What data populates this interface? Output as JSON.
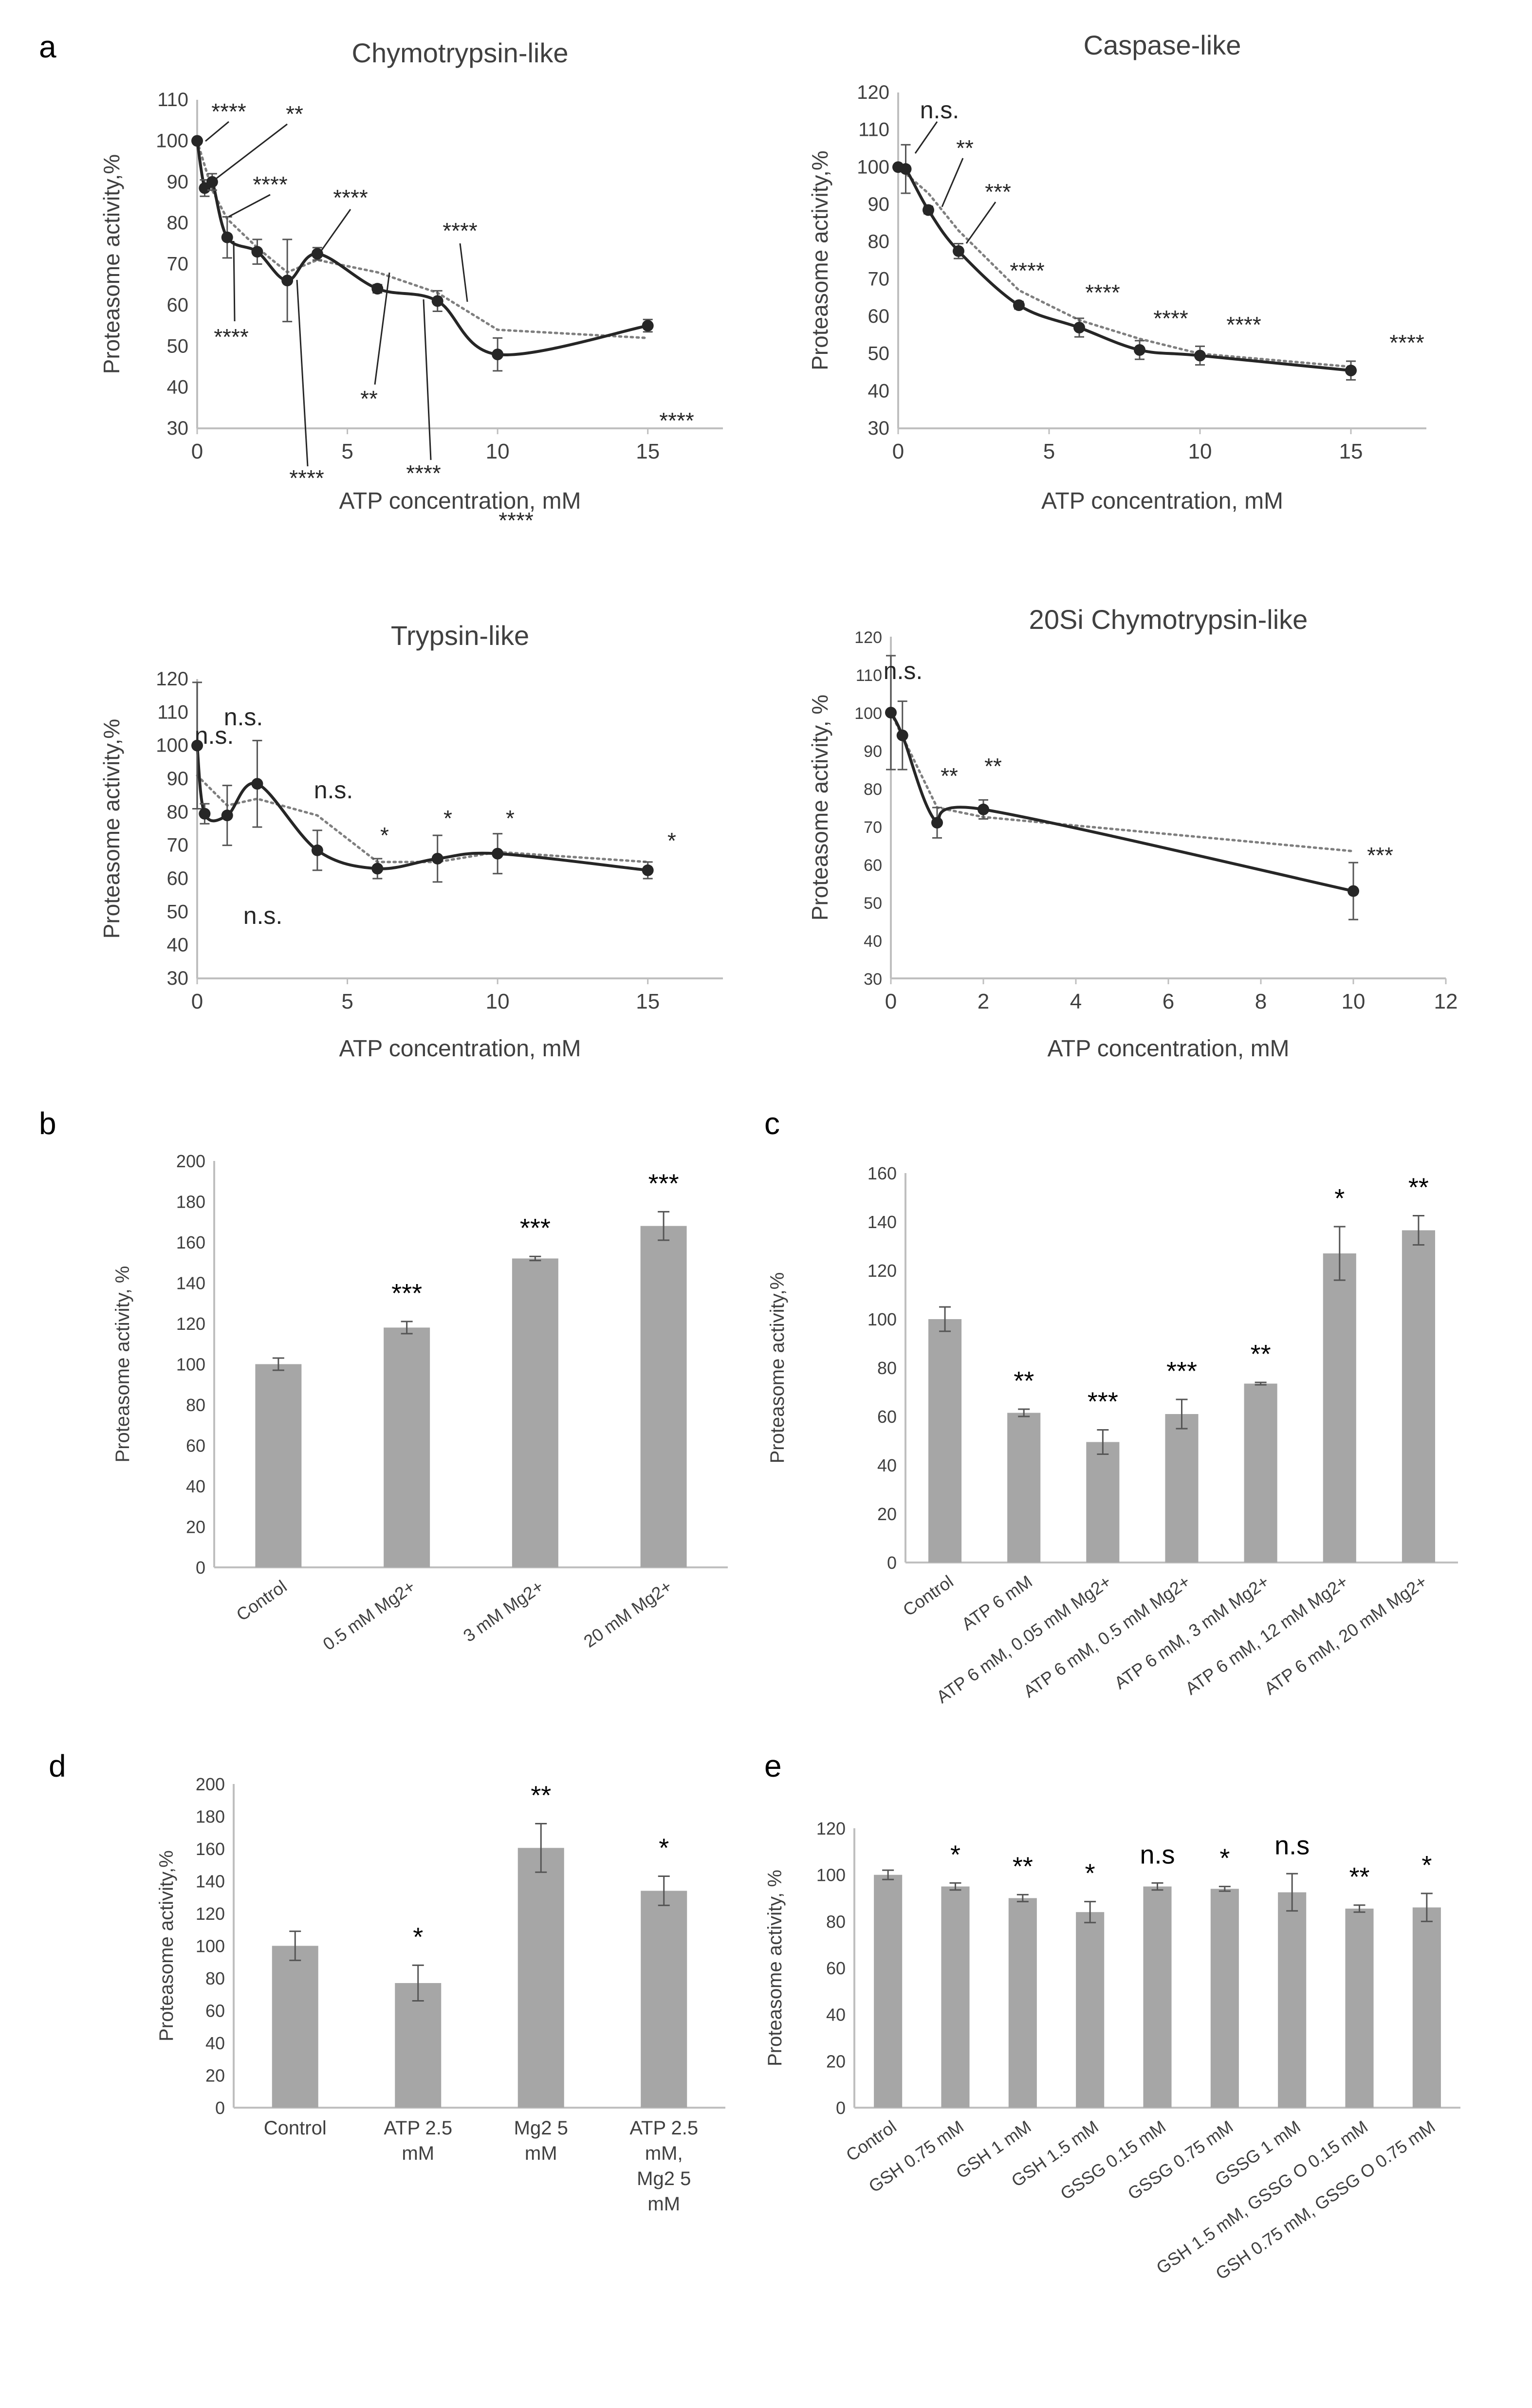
{
  "figure": {
    "panel_labels": [
      "a",
      "b",
      "c",
      "d",
      "e"
    ]
  },
  "chart_data": [
    {
      "id": "a1",
      "panel": "a",
      "type": "line",
      "title": "Chymotrypsin-like",
      "xlabel": "ATP concentration, mM",
      "ylabel": "Proteasome activity,%",
      "xlim": [
        0,
        17.5
      ],
      "ylim": [
        30,
        110
      ],
      "xticks": [
        0,
        5,
        10,
        15
      ],
      "yticks": [
        30,
        40,
        50,
        60,
        70,
        80,
        90,
        100,
        110
      ],
      "x": [
        0,
        0.25,
        0.5,
        1,
        2,
        3,
        4,
        6,
        8,
        10,
        15
      ],
      "values": [
        100,
        88.5,
        90,
        76.5,
        73,
        66,
        72.5,
        64,
        61,
        48,
        55
      ],
      "errors": [
        0,
        2,
        2,
        5,
        3,
        10,
        1.5,
        1,
        2.5,
        4,
        1.5
      ],
      "trend": [
        [
          0,
          100
        ],
        [
          0.5,
          88
        ],
        [
          1,
          81
        ],
        [
          2,
          74
        ],
        [
          3,
          68
        ],
        [
          4,
          71
        ],
        [
          6,
          68
        ],
        [
          8,
          63
        ],
        [
          10,
          54
        ],
        [
          15,
          52
        ]
      ],
      "annotations": [
        "****",
        "**",
        "****",
        "****",
        "****",
        "****",
        "**",
        "****",
        "****",
        "****",
        "****"
      ]
    },
    {
      "id": "a2",
      "panel": "a",
      "type": "line",
      "title": "Caspase-like",
      "xlabel": "ATP concentration, mM",
      "ylabel": "Proteasome activity,%",
      "xlim": [
        0,
        17.5
      ],
      "ylim": [
        30,
        120
      ],
      "xticks": [
        0,
        5,
        10,
        15
      ],
      "yticks": [
        30,
        40,
        50,
        60,
        70,
        80,
        90,
        100,
        110,
        120
      ],
      "x": [
        0,
        0.25,
        1,
        2,
        4,
        6,
        8,
        10,
        15
      ],
      "values": [
        100,
        99.5,
        88.5,
        77.5,
        63,
        57,
        51,
        49.5,
        45.5
      ],
      "errors": [
        0,
        6.5,
        1,
        2,
        1,
        2.5,
        2.5,
        2.5,
        2.5
      ],
      "trend": [
        [
          0,
          100
        ],
        [
          1,
          93
        ],
        [
          2,
          83
        ],
        [
          4,
          67
        ],
        [
          6,
          59
        ],
        [
          8,
          54
        ],
        [
          10,
          50
        ],
        [
          15,
          46.5
        ]
      ],
      "annotations": [
        "n.s.",
        "**",
        "***",
        "****",
        "****",
        "****",
        "****",
        "****"
      ]
    },
    {
      "id": "a3",
      "panel": "a",
      "type": "line",
      "title": "Trypsin-like",
      "xlabel": "ATP concentration, mM",
      "ylabel": "Proteasome activity,%",
      "xlim": [
        0,
        17.5
      ],
      "ylim": [
        30,
        120
      ],
      "xticks": [
        0,
        5,
        10,
        15
      ],
      "yticks": [
        30,
        40,
        50,
        60,
        70,
        80,
        90,
        100,
        110,
        120
      ],
      "x": [
        0,
        0.25,
        1,
        2,
        4,
        6,
        8,
        10,
        15
      ],
      "values": [
        100,
        79.5,
        79,
        88.5,
        68.5,
        63,
        66,
        67.5,
        62.5
      ],
      "errors": [
        19,
        3,
        9,
        13,
        6,
        3,
        7,
        6,
        2.5
      ],
      "trend": [
        [
          0,
          91
        ],
        [
          1,
          82
        ],
        [
          2,
          84
        ],
        [
          4,
          79
        ],
        [
          6,
          65
        ],
        [
          8,
          65
        ],
        [
          10,
          68
        ],
        [
          15,
          65
        ]
      ],
      "annotations": [
        "n.s.",
        "n.s.",
        "n.s.",
        "n.s.",
        "*",
        "*",
        "*",
        "*"
      ]
    },
    {
      "id": "a4",
      "panel": "a",
      "type": "line",
      "title": "20Si Chymotrypsin-like",
      "xlabel": "ATP concentration, mM",
      "ylabel": "Proteasome activity, %",
      "xlim": [
        0,
        12
      ],
      "ylim": [
        30,
        120
      ],
      "xticks": [
        0,
        2,
        4,
        6,
        8,
        10,
        12
      ],
      "yticks": [
        30,
        40,
        50,
        60,
        70,
        80,
        90,
        100,
        110,
        120
      ],
      "x": [
        0,
        0.25,
        1,
        2,
        10
      ],
      "values": [
        100,
        94,
        71,
        74.5,
        53
      ],
      "errors": [
        15,
        9,
        4,
        2.5,
        7.5
      ],
      "trend": [
        [
          0,
          100
        ],
        [
          1,
          75
        ],
        [
          2,
          72.5
        ],
        [
          10,
          63.5
        ]
      ],
      "annotations": [
        "n.s.",
        "**",
        "**",
        "***"
      ]
    },
    {
      "id": "b",
      "panel": "b",
      "type": "bar",
      "title": "",
      "xlabel": "",
      "ylabel": "Proteasome activity, %",
      "ylim": [
        0,
        200
      ],
      "yticks": [
        0,
        20,
        40,
        60,
        80,
        100,
        120,
        140,
        160,
        180,
        200
      ],
      "categories": [
        "Control",
        "0.5 mM Mg2+",
        "3 mM Mg2+",
        "20 mM Mg2+"
      ],
      "values": [
        100,
        118,
        152,
        168
      ],
      "errors": [
        3,
        3,
        1,
        7
      ],
      "significance": [
        "",
        "***",
        "***",
        "***"
      ],
      "bar_color": "#a6a6a6"
    },
    {
      "id": "c",
      "panel": "c",
      "type": "bar",
      "title": "",
      "xlabel": "",
      "ylabel": "Proteasome activity,%",
      "ylim": [
        0,
        160
      ],
      "yticks": [
        0,
        20,
        40,
        60,
        80,
        100,
        120,
        140,
        160
      ],
      "categories": [
        "Control",
        "ATP 6 mM",
        "ATP 6 mM, 0.05 mM Mg2+",
        "ATP 6 mM, 0.5 mM Mg2+",
        "ATP 6 mM, 3 mM Mg2+",
        "ATP 6 mM, 12 mM Mg2+",
        "ATP 6 mM, 20 mM Mg2+"
      ],
      "values": [
        100,
        61.5,
        49.5,
        61,
        73.5,
        127,
        136.5
      ],
      "errors": [
        5,
        1.5,
        5,
        6,
        0.5,
        11,
        6
      ],
      "significance": [
        "",
        "**",
        "***",
        "***",
        "**",
        "*",
        "**"
      ],
      "bar_color": "#a6a6a6"
    },
    {
      "id": "d",
      "panel": "d",
      "type": "bar",
      "title": "",
      "xlabel": "",
      "ylabel": "Proteasome activity,%",
      "ylim": [
        0,
        200
      ],
      "yticks": [
        0,
        20,
        40,
        60,
        80,
        100,
        120,
        140,
        160,
        180,
        200
      ],
      "categories": [
        "Control",
        "ATP 2.5 mM",
        "Mg2 5 mM",
        "ATP 2.5 mM, Mg2 5 mM"
      ],
      "category_lines": [
        [
          "Control"
        ],
        [
          "ATP 2.5",
          "mM"
        ],
        [
          "Mg2 5",
          "mM"
        ],
        [
          "ATP 2.5",
          "mM,",
          "Mg2 5",
          "mM"
        ]
      ],
      "values": [
        100,
        77,
        160.5,
        134
      ],
      "errors": [
        9,
        11,
        15,
        9
      ],
      "significance": [
        "",
        "*",
        "**",
        "*"
      ],
      "bar_color": "#a6a6a6"
    },
    {
      "id": "e",
      "panel": "e",
      "type": "bar",
      "title": "",
      "xlabel": "",
      "ylabel": "Proteasome activity, %",
      "ylim": [
        0,
        120
      ],
      "yticks": [
        0,
        20,
        40,
        60,
        80,
        100,
        120
      ],
      "categories": [
        "Control",
        "GSH 0.75 mM",
        "GSH 1 mM",
        "GSH 1.5 mM",
        "GSSG 0.15 mM",
        "GSSG 0.75 mM",
        "GSSG 1 mM",
        "GSH 1.5 mM, GSSG O 0.15 mM",
        "GSH 0.75 mM, GSSG O 0.75 mM"
      ],
      "values": [
        100,
        95,
        90,
        84,
        95,
        94,
        92.5,
        85.5,
        86
      ],
      "errors": [
        2,
        1.5,
        1.5,
        4.5,
        1.5,
        1,
        8,
        1.5,
        6
      ],
      "significance": [
        "",
        "*",
        "**",
        "*",
        "n.s",
        "*",
        "n.s",
        "**",
        "*"
      ],
      "bar_color": "#a6a6a6"
    }
  ]
}
